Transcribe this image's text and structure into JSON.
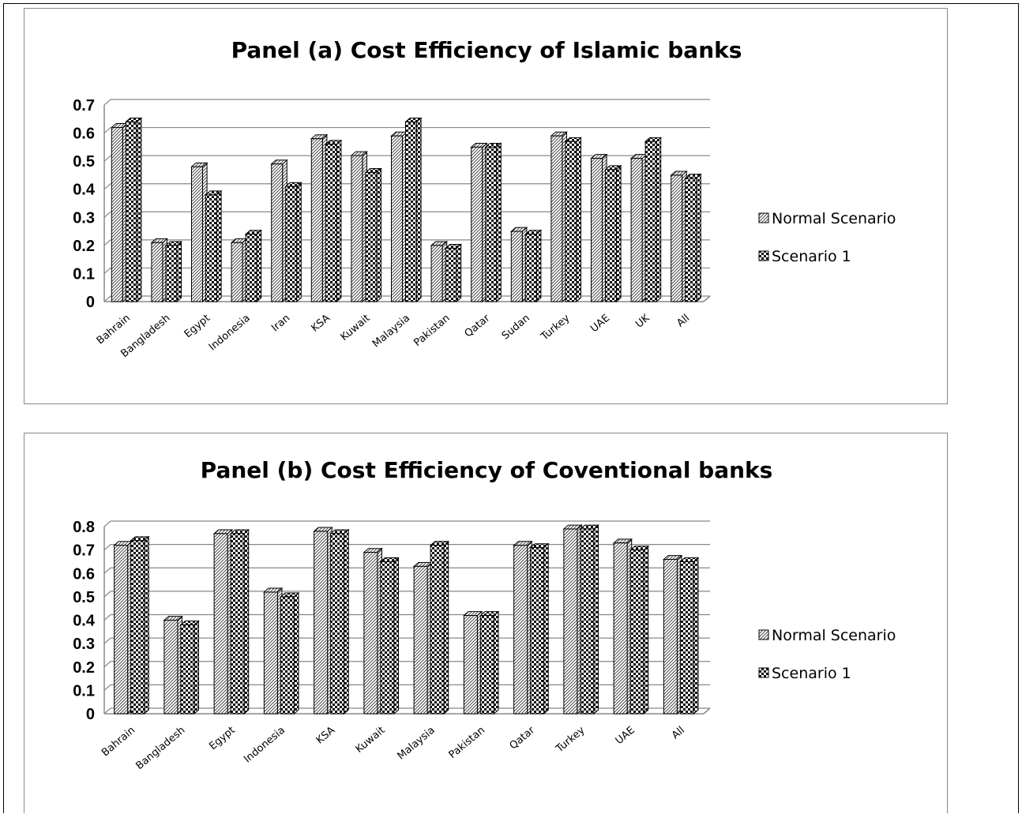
{
  "colors": {
    "bar_face": "#ffffff",
    "bar_outline": "#000000",
    "grid": "#888888",
    "axis": "#888888"
  },
  "chart_data": [
    {
      "type": "bar",
      "title": "Panel (a) Cost Efficiency of Islamic banks",
      "categories": [
        "Bahrain",
        "Bangladesh",
        "Egypt",
        "Indonesia",
        "Iran",
        "KSA",
        "Kuwait",
        "Malaysia",
        "Pakistan",
        "Qatar",
        "Sudan",
        "Turkey",
        "UAE",
        "UK",
        "All"
      ],
      "series": [
        {
          "name": "Normal Scenario",
          "pattern": "diagonal-hatch",
          "values": [
            0.62,
            0.21,
            0.48,
            0.21,
            0.49,
            0.58,
            0.52,
            0.59,
            0.2,
            0.55,
            0.25,
            0.59,
            0.51,
            0.51,
            0.45
          ]
        },
        {
          "name": "Scenario  1",
          "pattern": "checker",
          "values": [
            0.64,
            0.2,
            0.38,
            0.24,
            0.41,
            0.56,
            0.46,
            0.64,
            0.19,
            0.55,
            0.24,
            0.57,
            0.47,
            0.57,
            0.44
          ]
        }
      ],
      "ylim": [
        0,
        0.7
      ],
      "yticks": [
        "0",
        "0.1",
        "0.2",
        "0.3",
        "0.4",
        "0.5",
        "0.6",
        "0.7"
      ],
      "grid": true,
      "legend_position": "right"
    },
    {
      "type": "bar",
      "title": "Panel (b) Cost Efficiency of Coventional banks",
      "categories": [
        "Bahrain",
        "Bangladesh",
        "Egypt",
        "Indonesia",
        "KSA",
        "Kuwait",
        "Malaysia",
        "Pakistan",
        "Qatar",
        "Turkey",
        "UAE",
        "All"
      ],
      "series": [
        {
          "name": "Normal Scenario",
          "pattern": "diagonal-hatch",
          "values": [
            0.72,
            0.4,
            0.77,
            0.52,
            0.78,
            0.69,
            0.63,
            0.42,
            0.72,
            0.79,
            0.73,
            0.66
          ]
        },
        {
          "name": "Scenario  1",
          "pattern": "checker",
          "values": [
            0.74,
            0.38,
            0.77,
            0.5,
            0.77,
            0.65,
            0.72,
            0.42,
            0.71,
            0.79,
            0.7,
            0.65
          ]
        }
      ],
      "ylim": [
        0,
        0.8
      ],
      "yticks": [
        "0",
        "0.1",
        "0.2",
        "0.3",
        "0.4",
        "0.5",
        "0.6",
        "0.7",
        "0.8"
      ],
      "grid": true,
      "legend_position": "right"
    }
  ]
}
